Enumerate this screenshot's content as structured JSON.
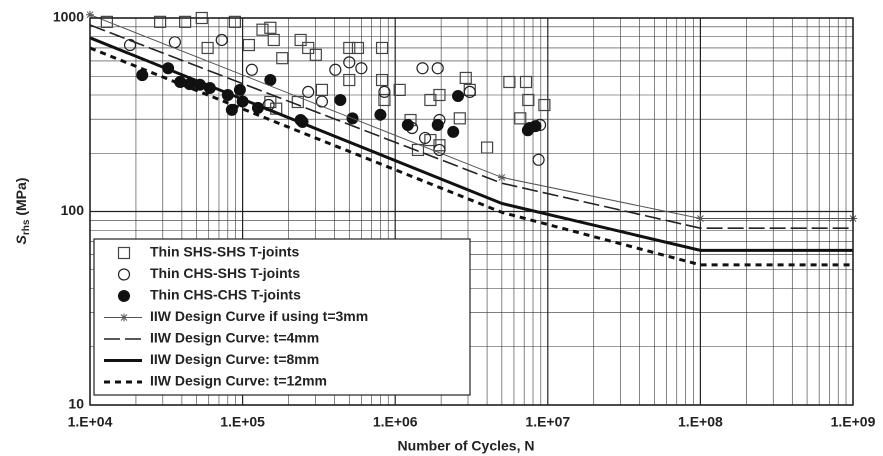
{
  "chart_data": {
    "type": "scatter",
    "x_label": "Number of Cycles, N",
    "y_label": "S",
    "y_label_sub": "rhs",
    "y_label_unit": "(MPa)",
    "xscale": "log",
    "yscale": "log",
    "xlim": [
      10000,
      1000000000
    ],
    "ylim": [
      10,
      1000
    ],
    "xticks": [
      {
        "value": 10000,
        "label": "1.E+04"
      },
      {
        "value": 100000,
        "label": "1.E+05"
      },
      {
        "value": 1000000,
        "label": "1.E+06"
      },
      {
        "value": 10000000,
        "label": "1.E+07"
      },
      {
        "value": 100000000,
        "label": "1.E+08"
      },
      {
        "value": 1000000000,
        "label": "1.E+09"
      }
    ],
    "yticks": [
      10,
      100,
      1000
    ],
    "grid": true,
    "legend": "lower left",
    "series": [
      {
        "name": "Thin SHS-SHS T-joints",
        "kind": "scatter",
        "marker": "square",
        "color": "#444444",
        "x": [
          12900,
          28800,
          42000,
          54000,
          89000,
          59000,
          110000,
          135000,
          152000,
          160000,
          182000,
          240000,
          269000,
          302000,
          331000,
          500000,
          570000,
          820000,
          500000,
          820000,
          850000,
          1070000,
          152000,
          166000,
          230000,
          1260000,
          1700000,
          1950000,
          2650000,
          2900000,
          3080000,
          1410000,
          1700000,
          1950000,
          4000000,
          5600000,
          7200000,
          7450000,
          6600000,
          9500000
        ],
        "values": [
          955,
          955,
          955,
          1000,
          955,
          700,
          725,
          870,
          890,
          770,
          620,
          770,
          700,
          645,
          425,
          700,
          700,
          700,
          478,
          478,
          377,
          425,
          368,
          340,
          368,
          297,
          377,
          400,
          303,
          490,
          425,
          208,
          234,
          220,
          214,
          467,
          467,
          377,
          303,
          355
        ]
      },
      {
        "name": "Thin CHS-SHS T-joints",
        "kind": "scatter",
        "marker": "circle",
        "color": "#222222",
        "x": [
          18300,
          36000,
          73000,
          115000,
          148000,
          269000,
          331000,
          405000,
          500000,
          600000,
          850000,
          1290000,
          1570000,
          1950000,
          1950000,
          1510000,
          1900000,
          3080000,
          8900000,
          8700000
        ],
        "values": [
          725,
          750,
          770,
          540,
          355,
          415,
          370,
          540,
          590,
          550,
          415,
          270,
          240,
          297,
          208,
          550,
          550,
          415,
          280,
          185
        ]
      },
      {
        "name": "Thin CHS-CHS T-joints",
        "kind": "scatter",
        "marker": "filled-circle",
        "color": "#111111",
        "x": [
          22000,
          32500,
          39000,
          45000,
          52500,
          61000,
          80000,
          96000,
          85000,
          100000,
          126000,
          152000,
          240000,
          247000,
          437000,
          525000,
          800000,
          1210000,
          1900000,
          2400000,
          2580000,
          7400000,
          7600000,
          8300000
        ],
        "values": [
          507,
          550,
          467,
          455,
          452,
          435,
          400,
          425,
          335,
          370,
          343,
          478,
          297,
          290,
          377,
          303,
          316,
          280,
          280,
          258,
          395,
          263,
          270,
          276
        ]
      },
      {
        "name": "IIW Design Curve if using t=3mm",
        "kind": "line",
        "style": "thin-star",
        "color": "#555555",
        "x": [
          10000,
          5000000,
          100000000,
          1000000000
        ],
        "values": [
          1040,
          150,
          92,
          92
        ]
      },
      {
        "name": "IIW Design Curve: t=4mm",
        "kind": "line",
        "style": "long-dash",
        "color": "#222222",
        "x": [
          10000,
          5000000,
          100000000,
          1000000000
        ],
        "values": [
          920,
          140,
          82,
          82
        ]
      },
      {
        "name": "IIW Design Curve: t=8mm",
        "kind": "line",
        "style": "thick",
        "color": "#111111",
        "x": [
          10000,
          5000000,
          100000000,
          1000000000
        ],
        "values": [
          790,
          110,
          63,
          63
        ]
      },
      {
        "name": "IIW Design Curve: t=12mm",
        "kind": "line",
        "style": "short-dash",
        "color": "#111111",
        "x": [
          10000,
          5000000,
          100000000,
          1000000000
        ],
        "values": [
          700,
          99,
          53,
          53
        ]
      }
    ]
  }
}
